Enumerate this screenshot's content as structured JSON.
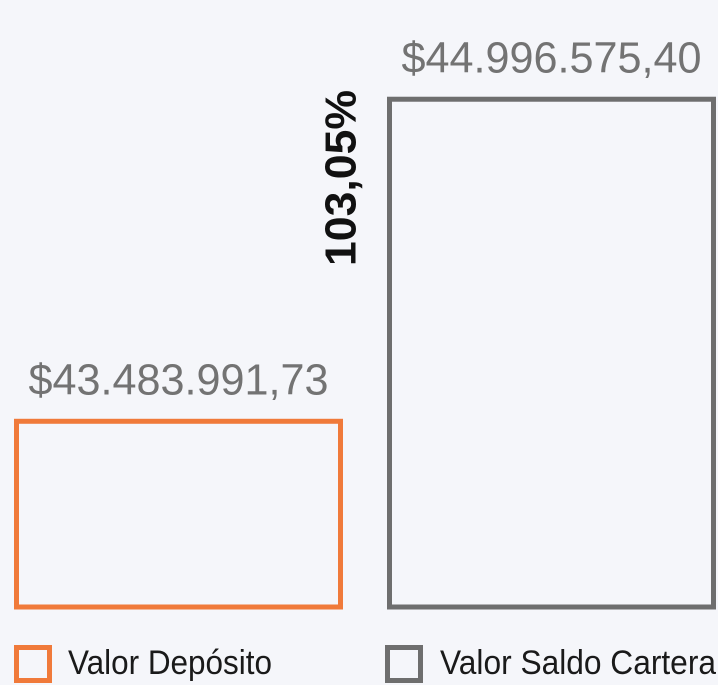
{
  "chart_data": {
    "type": "bar",
    "categories": [
      "Valor Depósito",
      "Valor Saldo Cartera"
    ],
    "values": [
      43483991.73,
      44996575.4
    ],
    "value_labels": [
      "$43.483.991,73",
      "$44.996.575,40"
    ],
    "colors": [
      "#f07a3a",
      "#6e6e6e"
    ],
    "ylim": [
      42600000,
      45000000
    ],
    "annotation": "103,05%"
  }
}
